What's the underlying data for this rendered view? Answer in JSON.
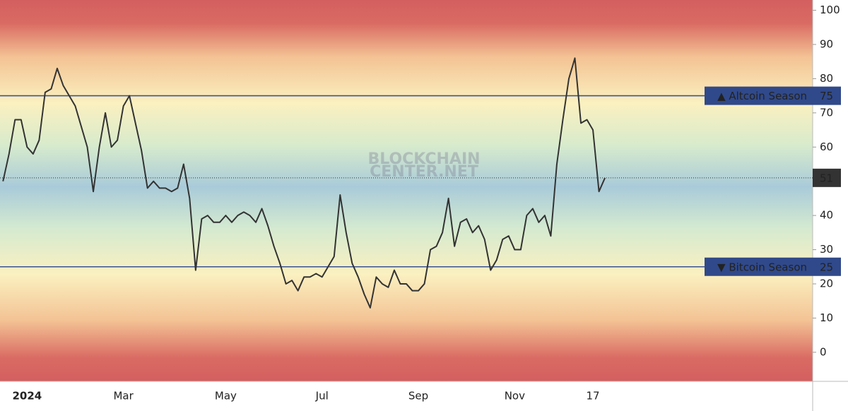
{
  "chart_data": {
    "type": "line",
    "watermark": [
      "BLOCKCHAIN",
      "CENTER.NET"
    ],
    "categories": [
      null,
      null,
      null,
      null,
      "2024",
      null,
      null,
      null,
      null,
      null,
      null,
      null,
      null,
      null,
      null,
      null,
      null,
      null,
      null,
      null,
      "Mar",
      null,
      null,
      null,
      null,
      null,
      null,
      null,
      null,
      null,
      null,
      null,
      null,
      null,
      null,
      null,
      null,
      "May",
      null,
      null,
      null,
      null,
      null,
      null,
      null,
      null,
      null,
      null,
      null,
      null,
      null,
      null,
      null,
      "Jul",
      null,
      null,
      null,
      null,
      null,
      null,
      null,
      null,
      null,
      null,
      null,
      null,
      null,
      null,
      null,
      "Sep",
      null,
      null,
      null,
      null,
      null,
      null,
      null,
      null,
      null,
      null,
      null,
      null,
      null,
      null,
      null,
      "Nov",
      null,
      null,
      null,
      null,
      null,
      null,
      null,
      null,
      null,
      null,
      null,
      null,
      "17",
      null,
      null,
      null,
      null,
      null,
      null,
      null,
      null,
      null,
      null,
      null,
      null,
      null,
      null,
      null,
      null,
      null,
      null,
      null,
      null,
      null,
      null,
      null,
      null,
      null,
      null,
      null,
      null,
      null,
      null,
      null,
      null,
      null,
      null,
      null,
      null
    ],
    "series": [
      {
        "color": "#333333",
        "values": [
          50,
          58,
          68,
          68,
          60,
          58,
          62,
          76,
          77,
          83,
          78,
          75,
          72,
          66,
          60,
          47,
          60,
          70,
          60,
          62,
          72,
          75,
          67,
          59,
          48,
          50,
          48,
          48,
          47,
          48,
          55,
          45,
          24,
          39,
          40,
          38,
          38,
          40,
          38,
          40,
          41,
          40,
          38,
          42,
          37,
          31,
          26,
          20,
          21,
          18,
          22,
          22,
          23,
          22,
          25,
          28,
          46,
          35,
          26,
          22,
          17,
          13,
          22,
          20,
          19,
          24,
          20,
          20,
          18,
          18,
          20,
          30,
          31,
          35,
          45,
          31,
          38,
          39,
          35,
          37,
          33,
          24,
          27,
          33,
          34,
          30,
          30,
          40,
          42,
          38,
          40,
          34,
          55,
          68,
          80,
          86,
          67,
          68,
          65,
          47,
          51,
          null,
          null,
          null,
          null,
          null,
          null,
          null,
          null,
          null,
          null,
          null,
          null,
          null,
          null,
          null,
          null,
          null,
          null,
          null,
          null,
          null,
          null,
          null,
          null,
          null,
          null,
          null,
          null,
          null,
          null,
          null,
          null,
          null,
          null
        ]
      }
    ],
    "ylim": [
      -8.5,
      103
    ],
    "yticks": [
      0,
      10,
      20,
      30,
      40,
      50,
      60,
      70,
      80,
      90,
      100
    ],
    "thresholds": [
      {
        "value": 75,
        "label": "▲ Altcoin Season"
      },
      {
        "value": 25,
        "label": "▼ Bitcoin Season"
      }
    ],
    "current": 51
  }
}
